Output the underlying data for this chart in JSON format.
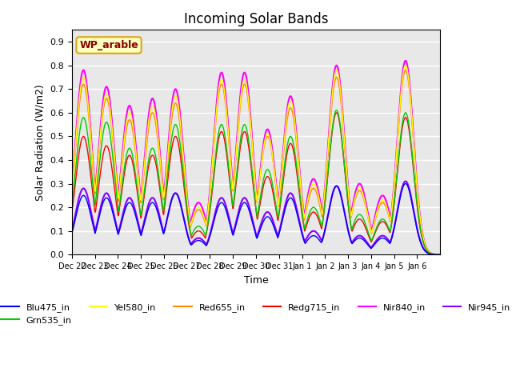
{
  "title": "Incoming Solar Bands",
  "xlabel": "Time",
  "ylabel": "Solar Radiation (W/m2)",
  "ylim": [
    0.0,
    0.95
  ],
  "yticks": [
    0.0,
    0.1,
    0.2,
    0.3,
    0.4,
    0.5,
    0.6,
    0.7,
    0.8,
    0.9
  ],
  "annotation_text": "WP_arable",
  "annotation_color": "#8B0000",
  "annotation_bg": "#FFFFC0",
  "annotation_border": "#DAA520",
  "bands": {
    "Blu475_in": {
      "color": "#0000FF",
      "lw": 1.0
    },
    "Grn535_in": {
      "color": "#00CC00",
      "lw": 1.0
    },
    "Yel580_in": {
      "color": "#FFFF00",
      "lw": 1.0
    },
    "Red655_in": {
      "color": "#FF8800",
      "lw": 1.0
    },
    "Redg715_in": {
      "color": "#FF0000",
      "lw": 1.0
    },
    "Nir840_in": {
      "color": "#FF00FF",
      "lw": 1.5
    },
    "Nir945_in": {
      "color": "#8800FF",
      "lw": 1.5
    }
  },
  "x_tick_labels": [
    "Dec 22",
    "Dec 23",
    "Dec 24",
    "Dec 25",
    "Dec 26",
    "Dec 27",
    "Dec 28",
    "Dec 29",
    "Dec 30",
    "Dec 31",
    "Jan 1",
    "Jan 2",
    "Jan 3",
    "Jan 4",
    "Jan 5",
    "Jan 6"
  ],
  "bg_color": "#E8E8E8",
  "grid_color": "#FFFFFF",
  "num_days": 16,
  "samples_per_day": 48,
  "day_peaks": {
    "Nir840_in": [
      0.78,
      0.71,
      0.63,
      0.66,
      0.7,
      0.22,
      0.77,
      0.77,
      0.53,
      0.67,
      0.32,
      0.8,
      0.3,
      0.25,
      0.82,
      0.0
    ],
    "Yel580_in": [
      0.75,
      0.68,
      0.6,
      0.63,
      0.67,
      0.2,
      0.74,
      0.74,
      0.51,
      0.65,
      0.3,
      0.78,
      0.28,
      0.23,
      0.8,
      0.0
    ],
    "Red655_in": [
      0.72,
      0.66,
      0.57,
      0.6,
      0.64,
      0.19,
      0.72,
      0.72,
      0.5,
      0.62,
      0.28,
      0.75,
      0.27,
      0.22,
      0.78,
      0.0
    ],
    "Redg715_in": [
      0.5,
      0.46,
      0.42,
      0.42,
      0.5,
      0.1,
      0.52,
      0.52,
      0.33,
      0.47,
      0.18,
      0.6,
      0.15,
      0.14,
      0.58,
      0.0
    ],
    "Grn535_in": [
      0.58,
      0.56,
      0.45,
      0.45,
      0.55,
      0.12,
      0.55,
      0.55,
      0.36,
      0.5,
      0.2,
      0.61,
      0.17,
      0.15,
      0.6,
      0.0
    ],
    "Blu475_in": [
      0.25,
      0.24,
      0.22,
      0.22,
      0.26,
      0.06,
      0.22,
      0.22,
      0.16,
      0.24,
      0.08,
      0.29,
      0.07,
      0.07,
      0.3,
      0.0
    ],
    "Nir945_in": [
      0.28,
      0.26,
      0.24,
      0.24,
      0.26,
      0.07,
      0.24,
      0.24,
      0.18,
      0.26,
      0.1,
      0.29,
      0.08,
      0.08,
      0.31,
      0.0
    ]
  }
}
